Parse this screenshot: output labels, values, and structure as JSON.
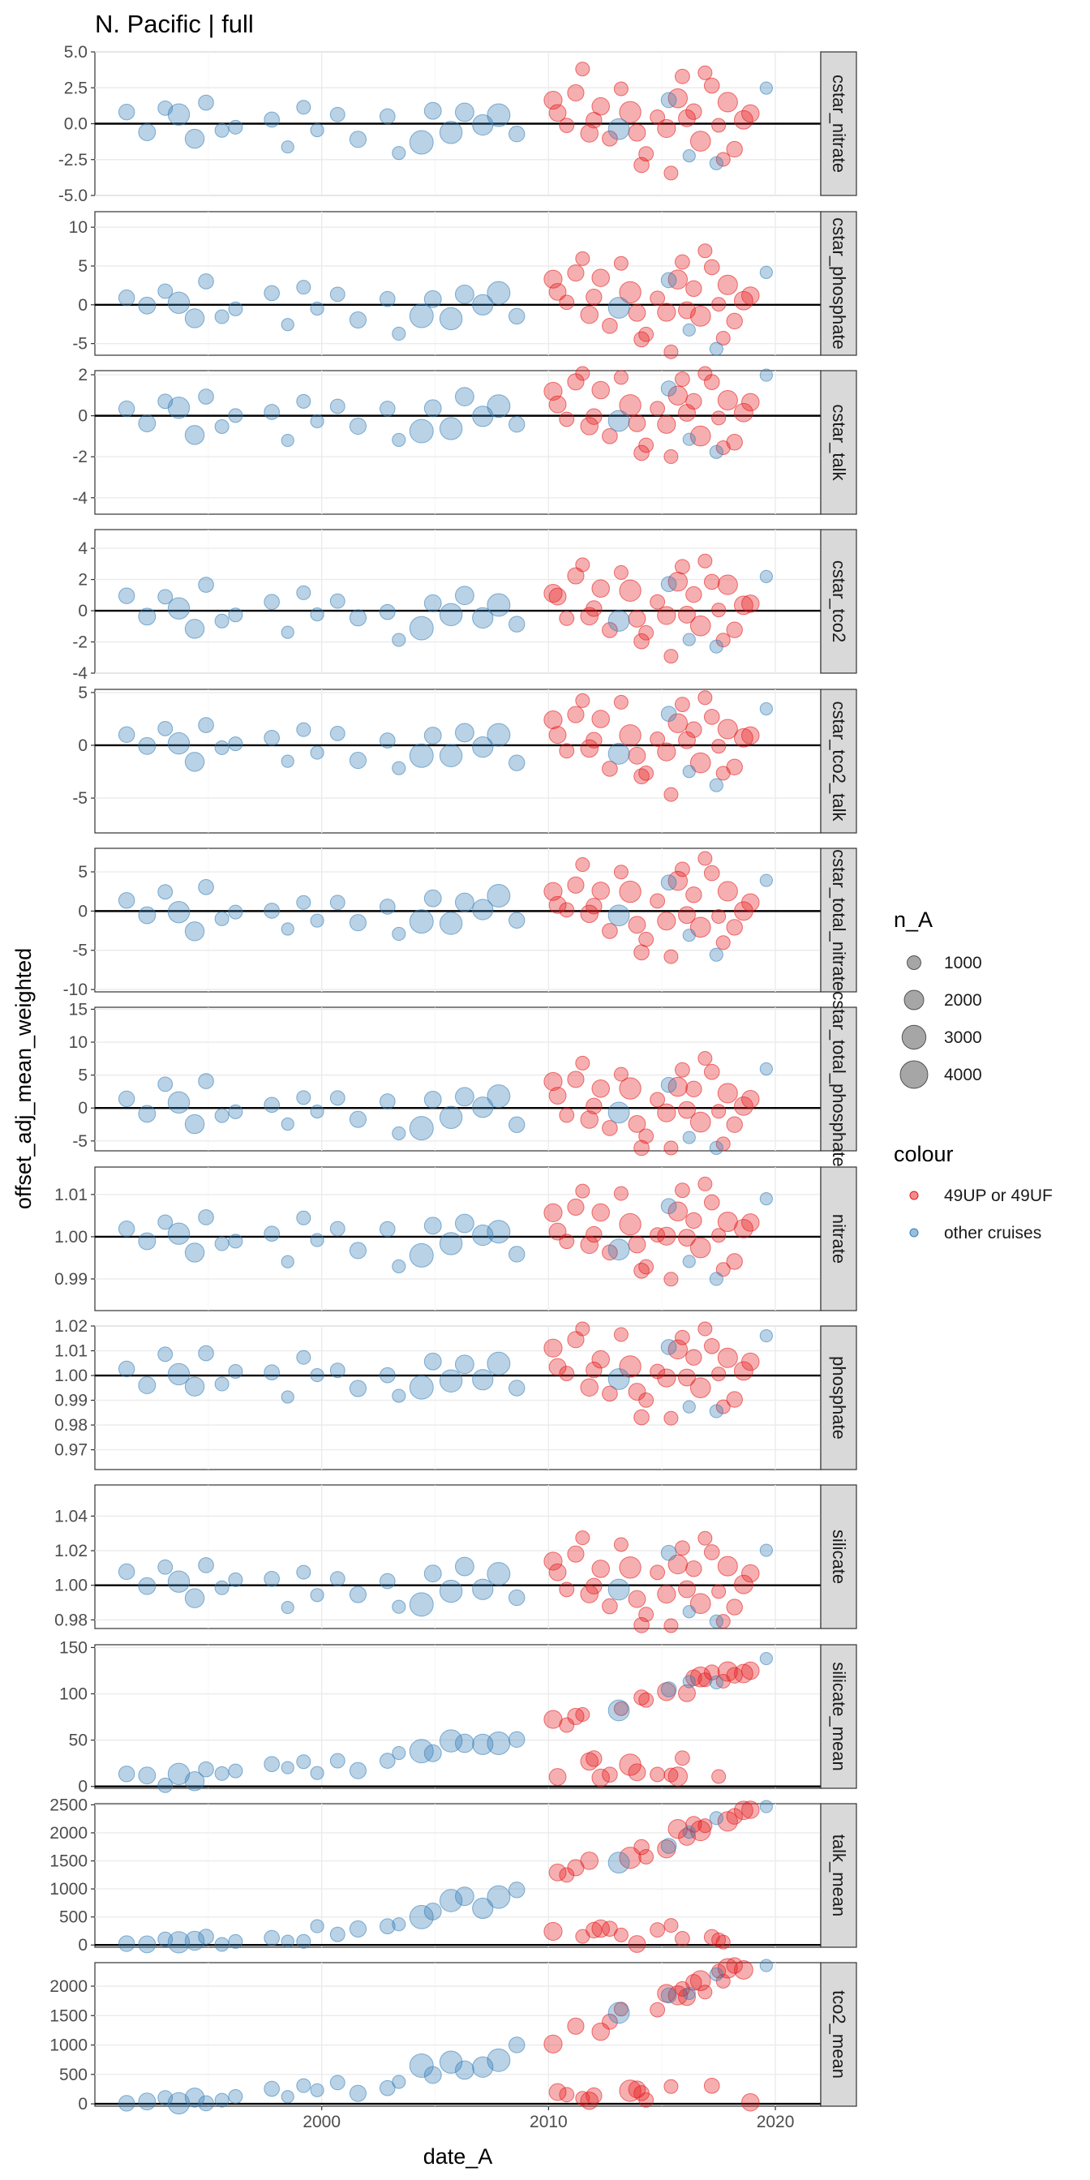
{
  "title": "N. Pacific | full",
  "chart_data": {
    "type": "scatter",
    "title": "N. Pacific | full",
    "xlabel": "date_A",
    "ylabel": "offset_adj_mean_weighted",
    "xlim": [
      1990,
      2022
    ],
    "x_ticks": [
      2000,
      2010,
      2020
    ],
    "x_tick_labels": [
      "2000",
      "2010",
      "2020"
    ],
    "hline_y": {
      "default": 0,
      "ratio": 1
    },
    "legend": {
      "position": "right",
      "size_title": "n_A",
      "size_entries": [
        {
          "label": "1000",
          "value": 1000
        },
        {
          "label": "2000",
          "value": 2000
        },
        {
          "label": "3000",
          "value": 3000
        },
        {
          "label": "4000",
          "value": 4000
        }
      ],
      "colour_title": "colour",
      "colour_entries": [
        {
          "label": "49UP or 49UF",
          "color": "#e41a1c"
        },
        {
          "label": "other cruises",
          "color": "#377eb8"
        }
      ]
    },
    "colors": {
      "49UP or 49UF": "#e41a1c",
      "other cruises": "#377eb8"
    },
    "facets": [
      {
        "label": "cstar_nitrate",
        "ylim": [
          -5,
          5
        ],
        "ticks": [
          -5,
          -2.5,
          0,
          2.5,
          5
        ],
        "tick_labels": [
          "-5.0",
          "-2.5",
          "0.0",
          "2.5",
          "5.0"
        ]
      },
      {
        "label": "cstar_phosphate",
        "ylim": [
          -6.5,
          12
        ],
        "ticks": [
          -5,
          0,
          5,
          10
        ],
        "tick_labels": [
          "-5",
          "0",
          "5",
          "10"
        ]
      },
      {
        "label": "cstar_talk",
        "ylim": [
          -4.8,
          2.2
        ],
        "ticks": [
          -4,
          -2,
          0,
          2
        ],
        "tick_labels": [
          "-4",
          "-2",
          "0",
          "2"
        ]
      },
      {
        "label": "cstar_tco2",
        "ylim": [
          -4,
          5.2
        ],
        "ticks": [
          -4,
          -2,
          0,
          2,
          4
        ],
        "tick_labels": [
          "-4",
          "-2",
          "0",
          "2",
          "4"
        ]
      },
      {
        "label": "cstar_tco2_talk",
        "ylim": [
          -8.3,
          5.3
        ],
        "ticks": [
          -5,
          0,
          5
        ],
        "tick_labels": [
          "-5",
          "0",
          "5"
        ]
      },
      {
        "label": "cstar_total_nitrate",
        "ylim": [
          -10.3,
          8
        ],
        "ticks": [
          -10,
          -5,
          0,
          5
        ],
        "tick_labels": [
          "-10",
          "-5",
          "0",
          "5"
        ]
      },
      {
        "label": "cstar_total_phosphate",
        "ylim": [
          -6.5,
          15.3
        ],
        "ticks": [
          -5,
          0,
          5,
          10,
          15
        ],
        "tick_labels": [
          "-5",
          "0",
          "5",
          "10",
          "15"
        ]
      },
      {
        "label": "nitrate",
        "ylim": [
          0.9825,
          1.0165
        ],
        "ticks": [
          0.99,
          1.0,
          1.01
        ],
        "tick_labels": [
          "0.99",
          "1.00",
          "1.01"
        ]
      },
      {
        "label": "phosphate",
        "ylim": [
          0.962,
          1.02
        ],
        "ticks": [
          0.97,
          0.98,
          0.99,
          1.0,
          1.01,
          1.02
        ],
        "tick_labels": [
          "0.97",
          "0.98",
          "0.99",
          "1.00",
          "1.01",
          "1.02"
        ]
      },
      {
        "label": "silicate",
        "ylim": [
          0.975,
          1.058
        ],
        "ticks": [
          0.98,
          1.0,
          1.02,
          1.04
        ],
        "tick_labels": [
          "0.98",
          "1.00",
          "1.02",
          "1.04"
        ]
      },
      {
        "label": "silicate_mean",
        "ylim": [
          -2,
          153
        ],
        "ticks": [
          0,
          50,
          100,
          150
        ],
        "tick_labels": [
          "0",
          "50",
          "100",
          "150"
        ]
      },
      {
        "label": "talk_mean",
        "ylim": [
          -40,
          2520
        ],
        "ticks": [
          0,
          500,
          1000,
          1500,
          2000,
          2500
        ],
        "tick_labels": [
          "0",
          "500",
          "1000",
          "1500",
          "2000",
          "2500"
        ]
      },
      {
        "label": "tco2_mean",
        "ylim": [
          -40,
          2400
        ],
        "ticks": [
          0,
          500,
          1000,
          1500,
          2000
        ],
        "tick_labels": [
          "0",
          "500",
          "1000",
          "1500",
          "2000"
        ]
      }
    ],
    "series": [
      {
        "name": "49UP or 49UF",
        "points": [
          [
            2010.4,
            0.9,
            1500
          ],
          [
            2011.2,
            2.5,
            1400
          ],
          [
            2012.3,
            1.8,
            1600
          ],
          [
            2013.6,
            1.2,
            2400
          ],
          [
            2014.8,
            0.6,
            1100
          ],
          [
            2015.7,
            2.1,
            1900
          ],
          [
            2016.4,
            1.4,
            1300
          ],
          [
            2017.2,
            2.8,
            1200
          ],
          [
            2017.9,
            1.7,
            2000
          ],
          [
            2018.6,
            0.4,
            1800
          ],
          [
            2011.8,
            -0.6,
            1600
          ],
          [
            2012.7,
            -1.5,
            1200
          ],
          [
            2013.9,
            -0.9,
            1500
          ],
          [
            2014.3,
            -2.1,
            1100
          ],
          [
            2015.2,
            -0.4,
            1700
          ],
          [
            2016.7,
            -1.2,
            2100
          ],
          [
            2017.5,
            -0.3,
            1000
          ],
          [
            2018.2,
            -1.8,
            1300
          ],
          [
            2010.8,
            -0.2,
            1100
          ],
          [
            2012.0,
            0.3,
            1300
          ],
          [
            2013.2,
            3.2,
            1000
          ],
          [
            2014.1,
            -3.0,
            1200
          ],
          [
            2015.9,
            3.5,
            1100
          ],
          [
            2016.1,
            0.0,
            1500
          ],
          [
            2017.7,
            -2.6,
            1000
          ],
          [
            2018.9,
            0.9,
            1600
          ],
          [
            2011.5,
            4.1,
            1000
          ],
          [
            2015.4,
            -3.8,
            1000
          ],
          [
            2016.9,
            4.3,
            1000
          ],
          [
            2010.2,
            1.9,
            1700
          ]
        ]
      },
      {
        "name": "other cruises",
        "points": [
          [
            1991.4,
            0.8,
            1300
          ],
          [
            1992.3,
            -0.5,
            1500
          ],
          [
            1993.1,
            1.6,
            1100
          ],
          [
            1993.7,
            0.3,
            2400
          ],
          [
            1994.4,
            -1.2,
            1900
          ],
          [
            1994.9,
            2.0,
            1200
          ],
          [
            1995.6,
            -0.6,
            1000
          ],
          [
            1997.8,
            0.5,
            1200
          ],
          [
            1998.5,
            -1.6,
            800
          ],
          [
            1999.2,
            1.1,
            1000
          ],
          [
            1999.8,
            -0.4,
            900
          ],
          [
            2000.7,
            0.9,
            1100
          ],
          [
            2001.6,
            -0.9,
            1400
          ],
          [
            2002.9,
            0.2,
            1200
          ],
          [
            2004.4,
            -1.3,
            2900
          ],
          [
            2004.9,
            0.7,
            1500
          ],
          [
            2005.7,
            -0.7,
            2600
          ],
          [
            2006.3,
            1.2,
            1800
          ],
          [
            2007.1,
            -0.2,
            2200
          ],
          [
            2007.8,
            0.8,
            2700
          ],
          [
            2008.6,
            -1.1,
            1300
          ],
          [
            2013.1,
            -0.6,
            2300
          ],
          [
            2015.3,
            2.3,
            1200
          ],
          [
            2016.2,
            -2.4,
            800
          ],
          [
            2019.6,
            3.0,
            800
          ],
          [
            1996.2,
            0.1,
            1000
          ],
          [
            2003.4,
            -2.0,
            900
          ],
          [
            2017.4,
            -3.2,
            900
          ]
        ]
      }
    ]
  }
}
